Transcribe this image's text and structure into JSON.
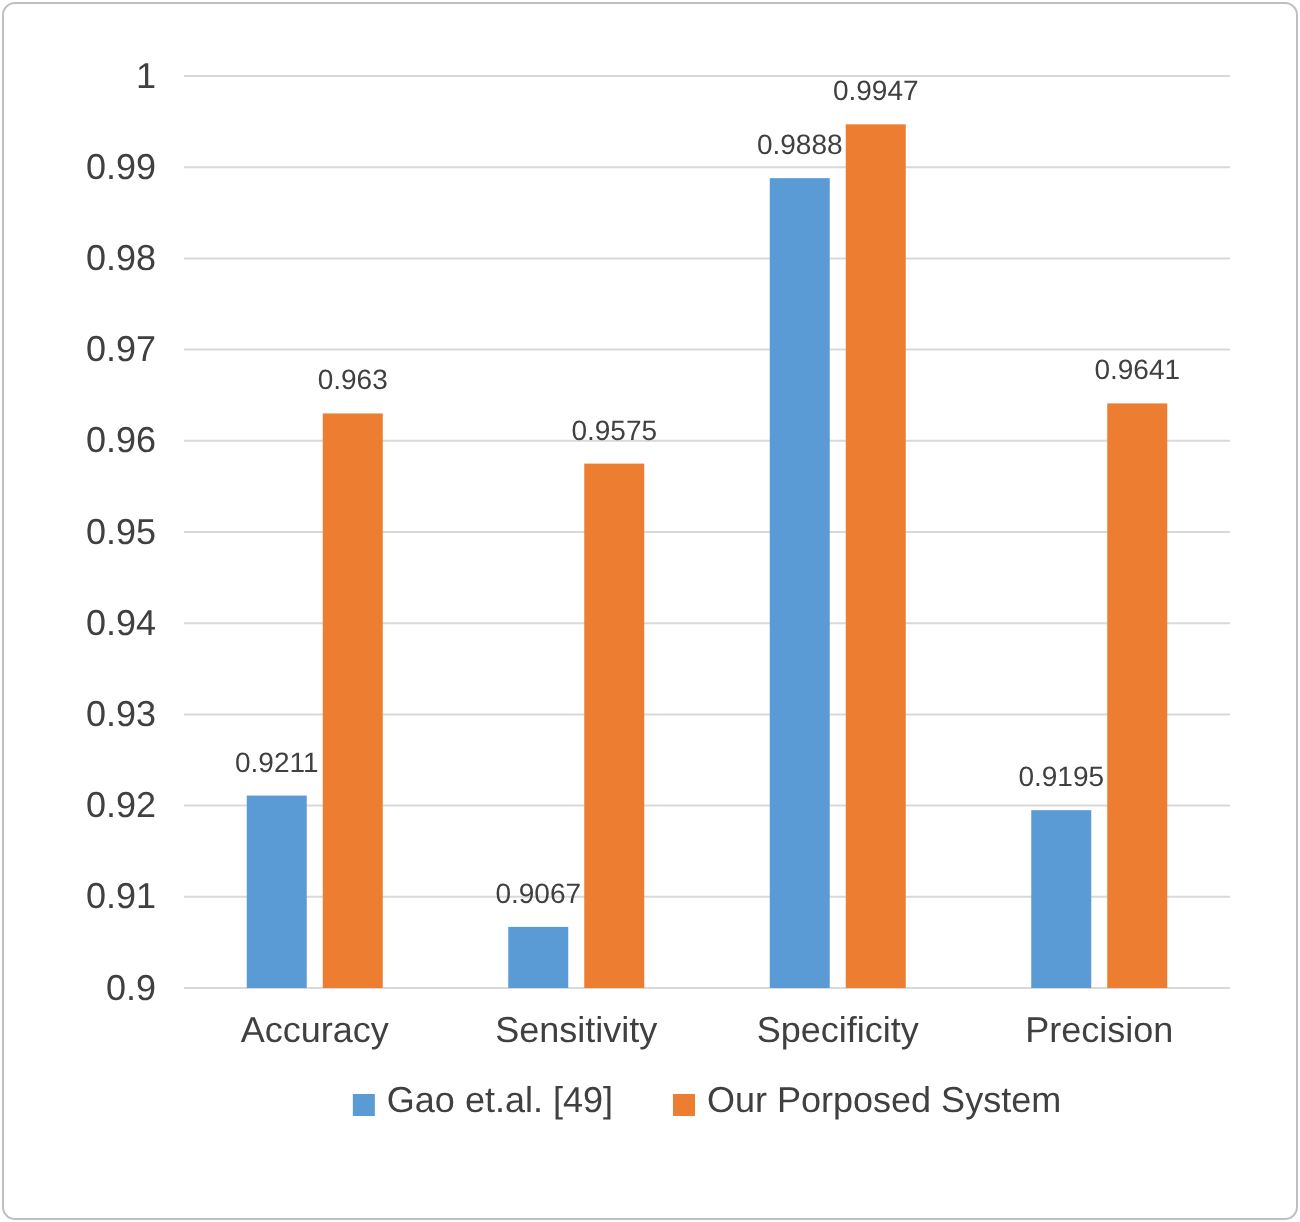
{
  "chart_data": {
    "type": "bar",
    "categories": [
      "Accuracy",
      "Sensitivity",
      "Specificity",
      "Precision"
    ],
    "series": [
      {
        "name": "Gao et.al. [49]",
        "color": "#5b9bd5",
        "values": [
          0.9211,
          0.9067,
          0.9888,
          0.9195
        ]
      },
      {
        "name": "Our Porposed System",
        "color": "#ed7d31",
        "values": [
          0.963,
          0.9575,
          0.9947,
          0.9641
        ]
      }
    ],
    "ylim": [
      0.9,
      1
    ],
    "yticks": [
      0.9,
      0.91,
      0.92,
      0.93,
      0.94,
      0.95,
      0.96,
      0.97,
      0.98,
      0.99,
      1
    ],
    "grid": "y",
    "legend": "bottom",
    "data_labels": true
  }
}
